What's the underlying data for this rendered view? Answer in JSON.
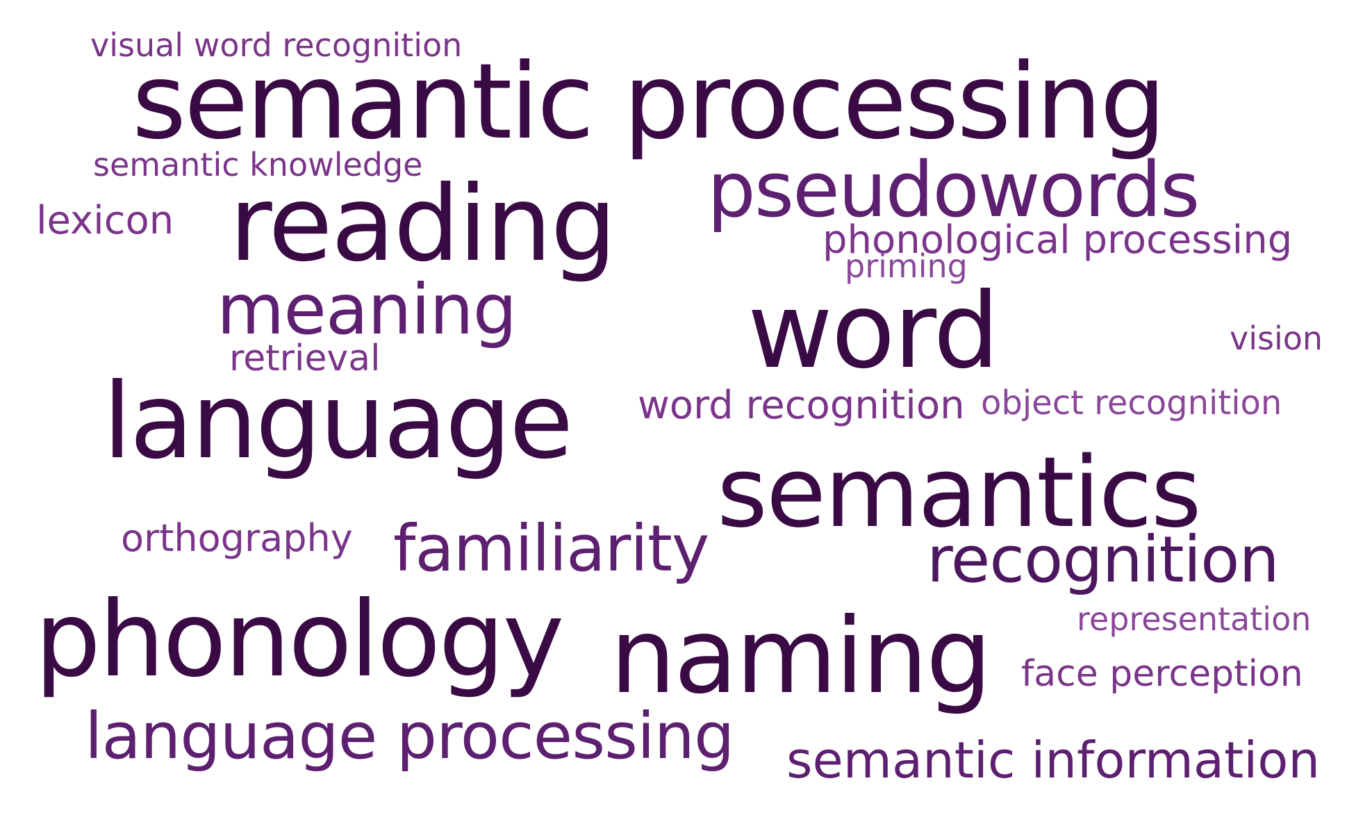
{
  "word_cloud": {
    "terms": [
      {
        "text": "visual word recognition",
        "weight": 1
      },
      {
        "text": "semantic processing",
        "weight": 5
      },
      {
        "text": "semantic knowledge",
        "weight": 1
      },
      {
        "text": "reading",
        "weight": 5
      },
      {
        "text": "pseudowords",
        "weight": 4
      },
      {
        "text": "lexicon",
        "weight": 1
      },
      {
        "text": "phonological processing",
        "weight": 2
      },
      {
        "text": "priming",
        "weight": 1
      },
      {
        "text": "meaning",
        "weight": 4
      },
      {
        "text": "word",
        "weight": 5
      },
      {
        "text": "vision",
        "weight": 1
      },
      {
        "text": "retrieval",
        "weight": 1
      },
      {
        "text": "language",
        "weight": 5
      },
      {
        "text": "word recognition",
        "weight": 2
      },
      {
        "text": "object recognition",
        "weight": 1
      },
      {
        "text": "semantics",
        "weight": 5
      },
      {
        "text": "orthography",
        "weight": 1
      },
      {
        "text": "familiarity",
        "weight": 3
      },
      {
        "text": "recognition",
        "weight": 3
      },
      {
        "text": "representation",
        "weight": 1
      },
      {
        "text": "phonology",
        "weight": 5
      },
      {
        "text": "naming",
        "weight": 5
      },
      {
        "text": "face perception",
        "weight": 1
      },
      {
        "text": "language processing",
        "weight": 3
      },
      {
        "text": "semantic information",
        "weight": 3
      }
    ]
  }
}
